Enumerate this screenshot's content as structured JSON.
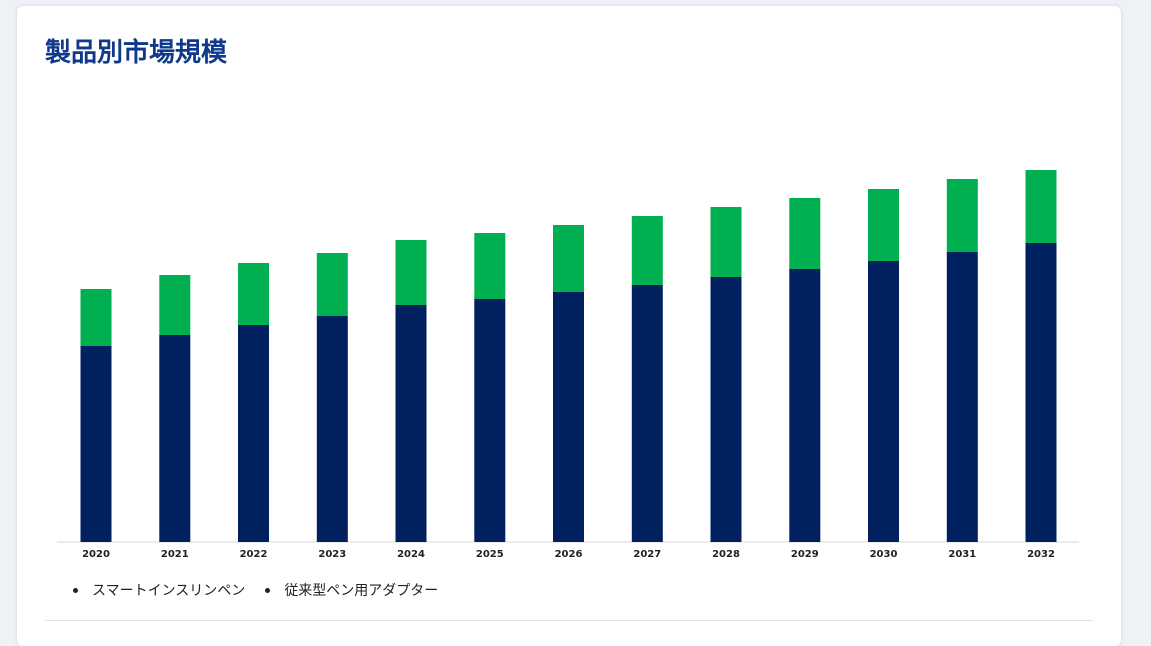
{
  "card": {
    "title": "製品別市場規模"
  },
  "chart_data": {
    "type": "bar",
    "stacked": true,
    "categories": [
      "2020",
      "2021",
      "2022",
      "2023",
      "2024",
      "2025",
      "2026",
      "2027",
      "2028",
      "2029",
      "2030",
      "2031",
      "2032"
    ],
    "series": [
      {
        "name": "スマートインスリンペン",
        "color": "#00205f",
        "values": [
          196,
          207,
          217,
          226,
          237,
          243,
          250,
          257,
          265,
          273,
          281,
          290,
          299
        ]
      },
      {
        "name": "従来型ペン用アダプター",
        "color": "#00b050",
        "values": [
          57,
          60,
          62,
          63,
          65,
          66,
          67,
          69,
          70,
          71,
          72,
          73,
          73
        ]
      }
    ],
    "ylim": [
      0,
      380
    ],
    "grid": false,
    "legend_position": "bottom-left",
    "xlabel": "",
    "ylabel": ""
  }
}
